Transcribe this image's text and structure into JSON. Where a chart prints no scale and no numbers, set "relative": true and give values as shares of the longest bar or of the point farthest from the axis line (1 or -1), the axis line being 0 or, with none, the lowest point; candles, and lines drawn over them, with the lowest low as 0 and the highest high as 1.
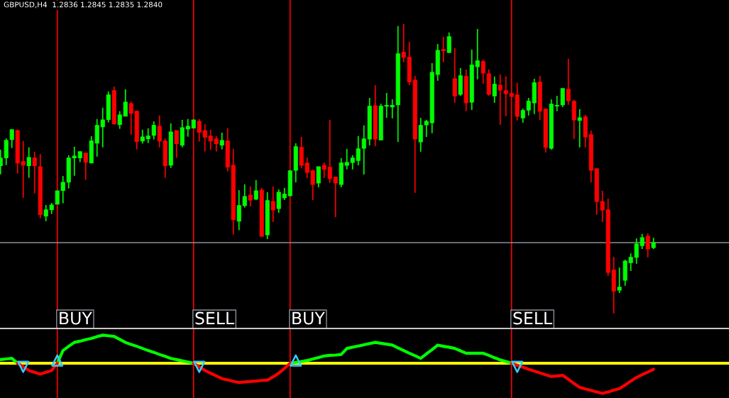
{
  "chart_data": [
    {
      "type": "candlestick",
      "title": "GBPUSD,H4  1.2836 1.2845 1.2835 1.2840",
      "relative": true,
      "grid": "x",
      "categories": [
        null,
        null,
        null,
        null,
        null,
        null,
        null,
        null,
        null,
        null,
        null,
        null,
        null,
        null,
        null,
        null,
        null,
        null,
        null,
        null,
        null,
        null,
        null,
        null,
        null,
        null,
        null,
        null,
        null,
        null,
        null,
        null,
        null,
        null,
        null,
        null,
        null,
        null,
        null,
        null,
        null,
        null,
        null,
        null,
        null,
        null,
        null,
        null,
        null,
        null,
        null,
        null,
        null,
        null,
        null,
        null,
        null,
        null,
        null,
        null,
        null,
        null,
        null,
        null,
        null,
        null,
        null,
        null,
        null,
        null,
        null,
        null,
        null,
        null,
        null,
        null,
        null,
        null,
        null,
        null,
        null,
        null,
        null,
        null,
        null,
        null,
        null,
        null,
        null,
        null,
        null,
        null,
        null,
        null,
        null,
        null,
        null,
        null,
        null,
        null,
        null,
        null,
        null,
        null,
        null,
        null,
        null,
        null,
        null,
        null,
        null,
        null,
        null,
        null,
        null,
        null
      ],
      "ohlc": [
        [
          0.511,
          0.566,
          0.481,
          0.537
        ],
        [
          0.538,
          0.605,
          0.513,
          0.598
        ],
        [
          0.601,
          0.635,
          0.572,
          0.635
        ],
        [
          0.632,
          0.636,
          0.484,
          0.52
        ],
        [
          0.525,
          0.596,
          0.4,
          0.513
        ],
        [
          0.511,
          0.574,
          0.469,
          0.539
        ],
        [
          0.537,
          0.559,
          0.415,
          0.511
        ],
        [
          0.507,
          0.551,
          0.329,
          0.342
        ],
        [
          0.337,
          0.375,
          0.319,
          0.358
        ],
        [
          0.359,
          0.382,
          0.344,
          0.375
        ],
        [
          0.378,
          0.424,
          0.378,
          0.424
        ],
        [
          0.425,
          0.475,
          0.381,
          0.453
        ],
        [
          0.454,
          0.547,
          0.432,
          0.537
        ],
        [
          0.538,
          0.576,
          0.476,
          0.544
        ],
        [
          0.538,
          0.559,
          0.523,
          0.559
        ],
        [
          0.554,
          0.554,
          0.462,
          0.523
        ],
        [
          0.52,
          0.613,
          0.52,
          0.596
        ],
        [
          0.589,
          0.672,
          0.542,
          0.65
        ],
        [
          0.645,
          0.711,
          0.574,
          0.669
        ],
        [
          0.67,
          0.767,
          0.66,
          0.755
        ],
        [
          0.77,
          0.784,
          0.653,
          0.655
        ],
        [
          0.653,
          0.699,
          0.638,
          0.686
        ],
        [
          0.682,
          0.775,
          0.682,
          0.73
        ],
        [
          0.725,
          0.733,
          0.618,
          0.692
        ],
        [
          0.699,
          0.701,
          0.567,
          0.594
        ],
        [
          0.596,
          0.635,
          0.587,
          0.61
        ],
        [
          0.604,
          0.64,
          0.589,
          0.613
        ],
        [
          0.616,
          0.664,
          0.601,
          0.65
        ],
        [
          0.647,
          0.684,
          0.574,
          0.596
        ],
        [
          0.596,
          0.605,
          0.469,
          0.511
        ],
        [
          0.513,
          0.657,
          0.503,
          0.627
        ],
        [
          0.632,
          0.632,
          0.538,
          0.587
        ],
        [
          0.582,
          0.669,
          0.574,
          0.642
        ],
        [
          0.638,
          0.672,
          0.611,
          0.647
        ],
        [
          0.641,
          0.669,
          0.641,
          0.669
        ],
        [
          0.664,
          0.672,
          0.594,
          0.626
        ],
        [
          0.632,
          0.654,
          0.56,
          0.609
        ],
        [
          0.613,
          0.635,
          0.565,
          0.596
        ],
        [
          0.603,
          0.613,
          0.56,
          0.587
        ],
        [
          0.582,
          0.625,
          0.567,
          0.598
        ],
        [
          0.596,
          0.64,
          0.491,
          0.506
        ],
        [
          0.512,
          0.569,
          0.273,
          0.324
        ],
        [
          0.319,
          0.426,
          0.288,
          0.373
        ],
        [
          0.373,
          0.446,
          0.366,
          0.404
        ],
        [
          0.409,
          0.439,
          0.37,
          0.392
        ],
        [
          0.395,
          0.461,
          0.392,
          0.424
        ],
        [
          0.426,
          0.434,
          0.265,
          0.267
        ],
        [
          0.272,
          0.419,
          0.257,
          0.39
        ],
        [
          0.387,
          0.439,
          0.316,
          0.358
        ],
        [
          0.363,
          0.429,
          0.348,
          0.419
        ],
        [
          0.4,
          0.434,
          0.392,
          0.412
        ],
        [
          0.407,
          0.493,
          0.407,
          0.493
        ],
        [
          0.495,
          0.588,
          0.453,
          0.576
        ],
        [
          0.574,
          0.61,
          0.502,
          0.512
        ],
        [
          0.52,
          0.539,
          0.468,
          0.488
        ],
        [
          0.493,
          0.498,
          0.392,
          0.446
        ],
        [
          0.451,
          0.507,
          0.436,
          0.507
        ],
        [
          0.512,
          0.522,
          0.468,
          0.498
        ],
        [
          0.505,
          0.669,
          0.451,
          0.466
        ],
        [
          0.471,
          0.471,
          0.333,
          0.451
        ],
        [
          0.446,
          0.537,
          0.436,
          0.52
        ],
        [
          0.512,
          0.569,
          0.498,
          0.522
        ],
        [
          0.522,
          0.547,
          0.498,
          0.537
        ],
        [
          0.529,
          0.613,
          0.512,
          0.569
        ],
        [
          0.571,
          0.65,
          0.48,
          0.603
        ],
        [
          0.603,
          0.745,
          0.581,
          0.716
        ],
        [
          0.718,
          0.789,
          0.578,
          0.603
        ],
        [
          0.6,
          0.725,
          0.6,
          0.716
        ],
        [
          0.716,
          0.762,
          0.676,
          0.719
        ],
        [
          0.714,
          0.74,
          0.674,
          0.719
        ],
        [
          0.721,
          0.993,
          0.593,
          0.897
        ],
        [
          0.902,
          1.0,
          0.868,
          0.885
        ],
        [
          0.885,
          0.939,
          0.789,
          0.801
        ],
        [
          0.806,
          0.821,
          0.417,
          0.603
        ],
        [
          0.593,
          0.676,
          0.559,
          0.65
        ],
        [
          0.652,
          0.669,
          0.61,
          0.664
        ],
        [
          0.659,
          0.865,
          0.623,
          0.833
        ],
        [
          0.826,
          0.931,
          0.804,
          0.909
        ],
        [
          0.912,
          0.956,
          0.868,
          0.908
        ],
        [
          0.902,
          0.971,
          0.9,
          0.956
        ],
        [
          0.811,
          0.917,
          0.728,
          0.752
        ],
        [
          0.757,
          0.848,
          0.752,
          0.821
        ],
        [
          0.819,
          0.843,
          0.699,
          0.728
        ],
        [
          0.73,
          0.912,
          0.703,
          0.858
        ],
        [
          0.853,
          0.983,
          0.809,
          0.873
        ],
        [
          0.87,
          0.877,
          0.794,
          0.831
        ],
        [
          0.828,
          0.843,
          0.752,
          0.757
        ],
        [
          0.752,
          0.819,
          0.728,
          0.792
        ],
        [
          0.789,
          0.826,
          0.652,
          0.772
        ],
        [
          0.77,
          0.819,
          0.681,
          0.76
        ],
        [
          0.76,
          0.76,
          0.75,
          0.75
        ],
        [
          0.755,
          0.797,
          0.667,
          0.681
        ],
        [
          0.676,
          0.708,
          0.659,
          0.701
        ],
        [
          0.703,
          0.745,
          0.684,
          0.733
        ],
        [
          0.728,
          0.811,
          0.689,
          0.797
        ],
        [
          0.799,
          0.821,
          0.669,
          0.699
        ],
        [
          0.706,
          0.708,
          0.556,
          0.574
        ],
        [
          0.571,
          0.74,
          0.566,
          0.723
        ],
        [
          0.717,
          0.752,
          0.699,
          0.719
        ],
        [
          0.721,
          0.777,
          0.713,
          0.777
        ],
        [
          0.775,
          0.88,
          0.721,
          0.735
        ],
        [
          0.733,
          0.738,
          0.603,
          0.669
        ],
        [
          0.667,
          0.706,
          0.574,
          0.676
        ],
        [
          0.679,
          0.686,
          0.574,
          0.61
        ],
        [
          0.618,
          0.632,
          0.453,
          0.495
        ],
        [
          0.5,
          0.5,
          0.341,
          0.387
        ],
        [
          0.387,
          0.424,
          0.316,
          0.358
        ],
        [
          0.358,
          0.397,
          0.13,
          0.142
        ],
        [
          0.15,
          0.196,
          0.0,
          0.078
        ],
        [
          0.081,
          0.159,
          0.071,
          0.091
        ],
        [
          0.115,
          0.186,
          0.096,
          0.181
        ],
        [
          0.176,
          0.208,
          0.147,
          0.194
        ],
        [
          0.194,
          0.26,
          0.172,
          0.24
        ],
        [
          0.235,
          0.275,
          0.223,
          0.262
        ],
        [
          0.267,
          0.277,
          0.194,
          0.223
        ],
        [
          0.228,
          0.262,
          0.223,
          0.245
        ]
      ],
      "colors": [
        "#00ff00",
        "#00ff00",
        "#00ff00",
        "#ff0000",
        "#ff0000",
        "#00ff00",
        "#ff0000",
        "#ff0000",
        "#00ff00",
        "#00ff00",
        "#00ff00",
        "#00ff00",
        "#00ff00",
        "#00ff00",
        "#00ff00",
        "#ff0000",
        "#00ff00",
        "#00ff00",
        "#00ff00",
        "#00ff00",
        "#ff0000",
        "#00ff00",
        "#00ff00",
        "#ff0000",
        "#ff0000",
        "#00ff00",
        "#00ff00",
        "#00ff00",
        "#ff0000",
        "#ff0000",
        "#00ff00",
        "#ff0000",
        "#00ff00",
        "#00ff00",
        "#00ff00",
        "#ff0000",
        "#ff0000",
        "#ff0000",
        "#ff0000",
        "#00ff00",
        "#ff0000",
        "#ff0000",
        "#00ff00",
        "#00ff00",
        "#ff0000",
        "#00ff00",
        "#ff0000",
        "#00ff00",
        "#ff0000",
        "#00ff00",
        "#00ff00",
        "#00ff00",
        "#00ff00",
        "#ff0000",
        "#ff0000",
        "#ff0000",
        "#00ff00",
        "#ff0000",
        "#ff0000",
        "#ff0000",
        "#00ff00",
        "#00ff00",
        "#00ff00",
        "#00ff00",
        "#00ff00",
        "#00ff00",
        "#ff0000",
        "#00ff00",
        "#00ff00",
        "#00ff00",
        "#00ff00",
        "#ff0000",
        "#ff0000",
        "#ff0000",
        "#00ff00",
        "#00ff00",
        "#00ff00",
        "#00ff00",
        "#ff0000",
        "#00ff00",
        "#ff0000",
        "#00ff00",
        "#ff0000",
        "#00ff00",
        "#00ff00",
        "#ff0000",
        "#ff0000",
        "#00ff00",
        "#ff0000",
        "#ff0000",
        "#ff0000",
        "#ff0000",
        "#00ff00",
        "#00ff00",
        "#00ff00",
        "#ff0000",
        "#ff0000",
        "#00ff00",
        "#00ff00",
        "#00ff00",
        "#ff0000",
        "#ff0000",
        "#00ff00",
        "#ff0000",
        "#ff0000",
        "#ff0000",
        "#ff0000",
        "#ff0000",
        "#ff0000",
        "#00ff00",
        "#00ff00",
        "#00ff00",
        "#00ff00",
        "#00ff00",
        "#ff0000",
        "#00ff00"
      ],
      "annotations": [
        "BUY",
        "SELL",
        "BUY",
        "SELL"
      ],
      "ref_lines": [
        {
          "axis": "y",
          "value": 0.245,
          "color": "#8a8f99"
        }
      ]
    },
    {
      "type": "line",
      "relative": true,
      "grid": "x",
      "categories": [
        null,
        null,
        null,
        null,
        null,
        null,
        null,
        null,
        null,
        null,
        null,
        null,
        null,
        null,
        null,
        null,
        null,
        null,
        null,
        null,
        null,
        null,
        null,
        null,
        null,
        null,
        null,
        null,
        null,
        null,
        null,
        null,
        null,
        null,
        null,
        null,
        null,
        null,
        null,
        null,
        null,
        null,
        null,
        null,
        null,
        null,
        null,
        null,
        null,
        null,
        null,
        null,
        null,
        null,
        null,
        null,
        null,
        null,
        null,
        null,
        null,
        null,
        null,
        null,
        null,
        null,
        null,
        null,
        null,
        null,
        null,
        null,
        null,
        null,
        null,
        null,
        null,
        null,
        null,
        null,
        null,
        null,
        null,
        null,
        null,
        null,
        null,
        null,
        null,
        null,
        null,
        null,
        null,
        null,
        null,
        null,
        null,
        null,
        null,
        null,
        null,
        null,
        null,
        null,
        null,
        null,
        null,
        null,
        null,
        null,
        null,
        null,
        null,
        null,
        null,
        null
      ],
      "series": [
        {
          "color": "#00ff00",
          "values": [
            0.12,
            0.14,
            0.16,
            0,
            null,
            null,
            null,
            null,
            null,
            null,
            0,
            0.42,
            0.56,
            0.69,
            0.73,
            0.78,
            0.82,
            0.88,
            0.93,
            0.91,
            0.89,
            0.79,
            0.69,
            0.62,
            0.56,
            0.49,
            0.42,
            0.36,
            0.29,
            0.23,
            0.16,
            0.12,
            0.08,
            0.04,
            0,
            null,
            null,
            null,
            null,
            null,
            null,
            null,
            null,
            null,
            null,
            null,
            null,
            null,
            null,
            null,
            null,
            0,
            0.03,
            0.06,
            0.09,
            0.14,
            0.19,
            0.24,
            0.26,
            0.27,
            0.29,
            0.49,
            0.53,
            0.57,
            0.61,
            0.65,
            0.69,
            0.66,
            0.63,
            0.6,
            0.51,
            0.42,
            0.33,
            0.25,
            0.16,
            0.31,
            0.45,
            0.6,
            0.56,
            0.53,
            0.49,
            0.41,
            0.33,
            0.33,
            0.33,
            0.33,
            0.26,
            0.18,
            0.11,
            0.06,
            0,
            null,
            null,
            null,
            null,
            null,
            null,
            null,
            null,
            null,
            null,
            null,
            null,
            null,
            null,
            null,
            null,
            null,
            null,
            null,
            null,
            null,
            null,
            null,
            null,
            null
          ]
        },
        {
          "color": "#ff0000",
          "values": [
            null,
            null,
            null,
            0,
            -0.12,
            -0.24,
            -0.3,
            -0.36,
            -0.3,
            -0.24,
            0,
            null,
            null,
            null,
            null,
            null,
            null,
            null,
            null,
            null,
            null,
            null,
            null,
            null,
            null,
            null,
            null,
            null,
            null,
            null,
            null,
            null,
            null,
            null,
            0,
            -0.12,
            -0.24,
            -0.33,
            -0.42,
            -0.51,
            -0.55,
            -0.6,
            -0.64,
            -0.62,
            -0.6,
            -0.59,
            -0.57,
            -0.56,
            -0.45,
            -0.33,
            -0.17,
            0,
            null,
            null,
            null,
            null,
            null,
            null,
            null,
            null,
            null,
            null,
            null,
            null,
            null,
            null,
            null,
            null,
            null,
            null,
            null,
            null,
            null,
            null,
            null,
            null,
            null,
            null,
            null,
            null,
            null,
            null,
            null,
            null,
            null,
            null,
            null,
            null,
            null,
            null,
            0,
            -0.07,
            -0.13,
            -0.2,
            -0.26,
            -0.32,
            -0.38,
            -0.44,
            -0.42,
            -0.4,
            -0.53,
            -0.67,
            -0.8,
            -0.85,
            -0.9,
            -0.95,
            -1,
            -0.95,
            -0.89,
            -0.84,
            -0.72,
            -0.59,
            -0.47,
            -0.38,
            -0.29,
            -0.2
          ]
        },
        {
          "type": "scatter",
          "color": "#33ccff",
          "marker": "triangle",
          "values": [
            null,
            null,
            null,
            null,
            -0.12,
            null,
            null,
            null,
            null,
            null,
            null,
            null,
            null,
            null,
            null,
            null,
            null,
            null,
            null,
            null,
            null,
            null,
            null,
            null,
            null,
            null,
            null,
            null,
            null,
            null,
            null,
            null,
            null,
            null,
            null,
            -0.12,
            null,
            null,
            null,
            null,
            null,
            null,
            null,
            null,
            null,
            null,
            null,
            null,
            null,
            null,
            null,
            null,
            null,
            null,
            null,
            null,
            null,
            null,
            null,
            null,
            null,
            null,
            null,
            null,
            null,
            null,
            null,
            null,
            null,
            null,
            null,
            null,
            null,
            null,
            null,
            null,
            null,
            null,
            null,
            null,
            null,
            null,
            null,
            null,
            null,
            null,
            null,
            null,
            null,
            null,
            null,
            -0.12,
            null,
            null,
            null,
            null,
            null,
            null,
            null,
            null,
            null,
            null,
            null,
            null,
            null,
            null,
            null,
            null,
            null,
            null,
            null,
            null,
            null,
            null,
            null,
            null
          ]
        },
        {
          "type": "scatter",
          "color": "#33ccff",
          "marker": "triangle",
          "values": [
            null,
            null,
            null,
            null,
            null,
            null,
            null,
            null,
            null,
            null,
            0.09,
            null,
            null,
            null,
            null,
            null,
            null,
            null,
            null,
            null,
            null,
            null,
            null,
            null,
            null,
            null,
            null,
            null,
            null,
            null,
            null,
            null,
            null,
            null,
            null,
            null,
            null,
            null,
            null,
            null,
            null,
            null,
            null,
            null,
            null,
            null,
            null,
            null,
            null,
            null,
            null,
            null,
            0.09,
            null,
            null,
            null,
            null,
            null,
            null,
            null,
            null,
            null,
            null,
            null,
            null,
            null,
            null,
            null,
            null,
            null,
            null,
            null,
            null,
            null,
            null,
            null,
            null,
            null,
            null,
            null,
            null,
            null,
            null,
            null,
            null,
            null,
            null,
            null,
            null,
            null,
            null,
            null,
            null,
            null,
            null,
            null,
            null,
            null,
            null,
            null,
            null,
            null,
            null,
            null,
            null,
            null,
            null,
            null,
            null,
            null,
            null,
            null,
            null,
            null,
            null,
            null
          ]
        }
      ],
      "ref_lines": [
        {
          "axis": "y",
          "value": 0,
          "color": "#ffff00"
        }
      ]
    }
  ]
}
